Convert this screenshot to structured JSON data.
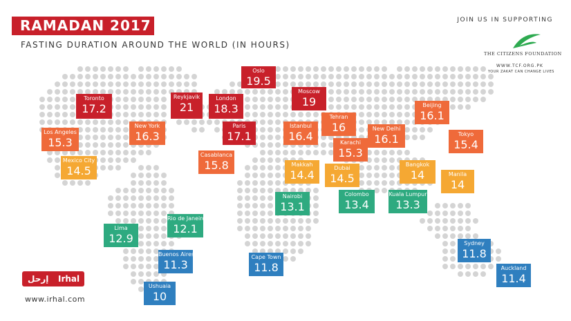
{
  "header": {
    "title": "RAMADAN 2017",
    "subtitle": "FASTING DURATION AROUND THE WORLD (IN HOURS)"
  },
  "sponsor": {
    "intro": "JOIN US IN SUPPORTING",
    "name": "The Citizens Foundation",
    "url": "WWW.TCF.ORG.PK",
    "tagline": "YOUR ZAKAT CAN CHANGE LIVES"
  },
  "brand": {
    "name": "Irhal",
    "name_arabic": "إرحل",
    "url": "www.irhal.com"
  },
  "cities": [
    {
      "name": "Oslo",
      "hours": 19.5,
      "color": "#c8202a"
    },
    {
      "name": "Toronto",
      "hours": 17.2,
      "color": "#c8202a"
    },
    {
      "name": "Reykjavik",
      "hours": 21,
      "color": "#c8202a"
    },
    {
      "name": "London",
      "hours": 18.3,
      "color": "#c8202a"
    },
    {
      "name": "Moscow",
      "hours": 19,
      "color": "#c8202a"
    },
    {
      "name": "Tehran",
      "hours": 16,
      "color": "#ef6a3a"
    },
    {
      "name": "Paris",
      "hours": 17.1,
      "color": "#c8202a"
    },
    {
      "name": "Istanbul",
      "hours": 16.4,
      "color": "#ef6a3a"
    },
    {
      "name": "Karachi",
      "hours": 15.3,
      "color": "#ef6a3a"
    },
    {
      "name": "New Delhi",
      "hours": 16.1,
      "color": "#ef6a3a"
    },
    {
      "name": "Beijing",
      "hours": 16.1,
      "color": "#ef6a3a"
    },
    {
      "name": "Tokyo",
      "hours": 15.4,
      "color": "#ef6a3a"
    },
    {
      "name": "Los Angeles",
      "hours": 15.3,
      "color": "#ef6a3a"
    },
    {
      "name": "New York",
      "hours": 16.3,
      "color": "#ef6a3a"
    },
    {
      "name": "Casablanca",
      "hours": 15.8,
      "color": "#ef6a3a"
    },
    {
      "name": "Mexico City",
      "hours": 14.5,
      "color": "#f5a833"
    },
    {
      "name": "Makkah",
      "hours": 14.4,
      "color": "#f5a833"
    },
    {
      "name": "Dubai",
      "hours": 14.5,
      "color": "#f5a833"
    },
    {
      "name": "Bangkok",
      "hours": 14,
      "color": "#f5a833"
    },
    {
      "name": "Manila",
      "hours": 14,
      "color": "#f5a833"
    },
    {
      "name": "Nairobi",
      "hours": 13.1,
      "color": "#2eaa80"
    },
    {
      "name": "Colombo",
      "hours": 13.4,
      "color": "#2eaa80"
    },
    {
      "name": "Kuala Lumpur",
      "hours": 13.3,
      "color": "#2eaa80"
    },
    {
      "name": "Rio de Janeiro",
      "hours": 12.1,
      "color": "#2eaa80"
    },
    {
      "name": "Lima",
      "hours": 12.9,
      "color": "#2eaa80"
    },
    {
      "name": "Buenos Aires",
      "hours": 11.3,
      "color": "#2f7fbf"
    },
    {
      "name": "Cape Town",
      "hours": 11.8,
      "color": "#2f7fbf"
    },
    {
      "name": "Sydney",
      "hours": 11.8,
      "color": "#2f7fbf"
    },
    {
      "name": "Auckland",
      "hours": 11.4,
      "color": "#2f7fbf"
    },
    {
      "name": "Ushuaia",
      "hours": 10,
      "color": "#2f7fbf"
    }
  ]
}
